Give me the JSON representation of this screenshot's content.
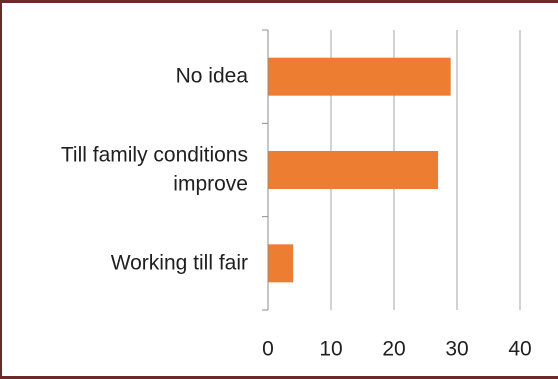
{
  "chart_data": {
    "type": "bar",
    "orientation": "horizontal",
    "categories": [
      "No idea",
      "Till family conditions improve",
      "Working till fair"
    ],
    "category_label_lines": [
      [
        "No idea"
      ],
      [
        "Till family conditions",
        "improve"
      ],
      [
        "Working till fair"
      ]
    ],
    "values": [
      29,
      27,
      4
    ],
    "xlim": [
      0,
      40
    ],
    "xticks": [
      0,
      10,
      20,
      30,
      40
    ],
    "grid": true,
    "legend": "none",
    "bar_color": "#ed7d31",
    "title": "",
    "xlabel": "",
    "ylabel": ""
  }
}
